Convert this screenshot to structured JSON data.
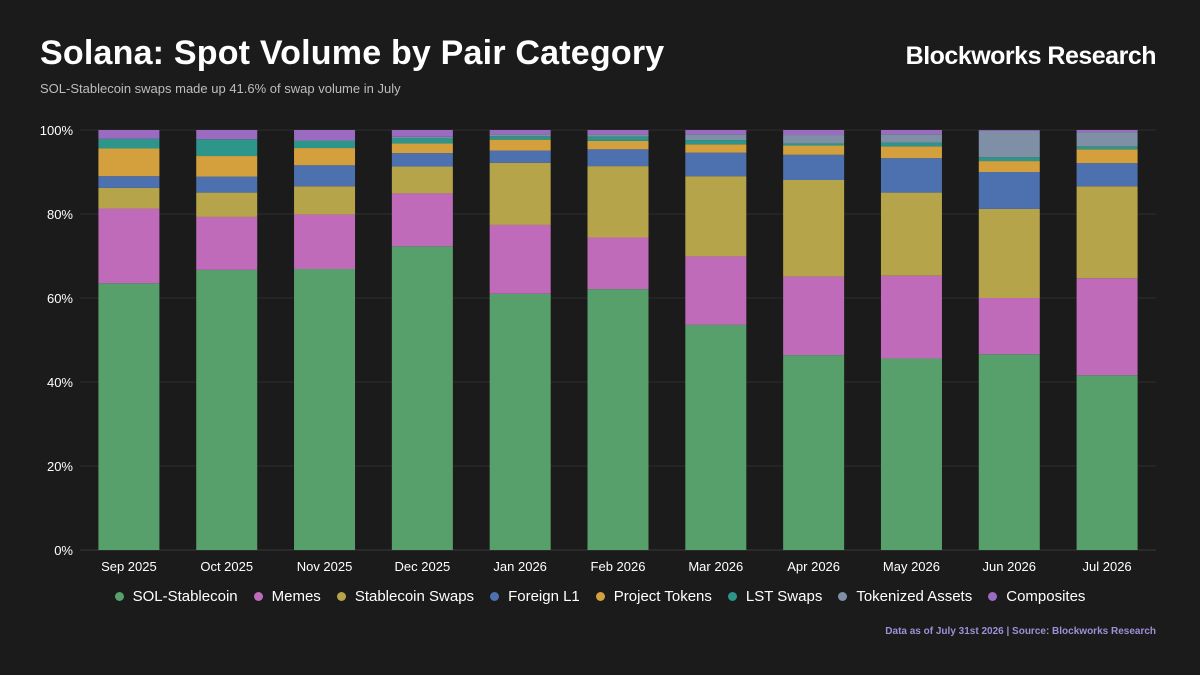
{
  "header": {
    "title": "Solana: Spot Volume by Pair Category",
    "subtitle": "SOL-Stablecoin swaps made up 41.6% of swap volume in July",
    "brand": "Blockworks Research"
  },
  "footer": {
    "source": "Data as of July 31st 2026 | Source: Blockworks Research"
  },
  "chart_data": {
    "type": "bar",
    "stacked": true,
    "percent": true,
    "ylim": [
      0,
      100
    ],
    "yticks": [
      "0%",
      "20%",
      "40%",
      "60%",
      "80%",
      "100%"
    ],
    "categories": [
      "Sep 2025",
      "Oct 2025",
      "Nov 2025",
      "Dec 2025",
      "Jan 2026",
      "Feb 2026",
      "Mar 2026",
      "Apr 2026",
      "May 2026",
      "Jun 2026",
      "Jul 2026"
    ],
    "legend_position": "bottom",
    "grid": true,
    "series": [
      {
        "name": "SOL-Stablecoin",
        "color": "#58a06b",
        "values": [
          63.5,
          66.7,
          66.9,
          72.3,
          61.0,
          62.1,
          53.6,
          46.4,
          45.6,
          46.6,
          41.6
        ]
      },
      {
        "name": "Memes",
        "color": "#bf6bb9",
        "values": [
          17.8,
          12.6,
          13.0,
          12.6,
          16.4,
          12.3,
          16.3,
          18.7,
          19.7,
          13.4,
          23.1
        ]
      },
      {
        "name": "Stablecoin Swaps",
        "color": "#b6a44a",
        "values": [
          4.9,
          5.8,
          6.7,
          6.4,
          14.8,
          17.0,
          19.1,
          23.0,
          19.8,
          21.2,
          21.9
        ]
      },
      {
        "name": "Foreign L1",
        "color": "#4d70ae",
        "values": [
          2.8,
          3.8,
          5.0,
          3.2,
          2.9,
          4.0,
          5.6,
          6.0,
          8.2,
          8.8,
          5.5
        ]
      },
      {
        "name": "Project Tokens",
        "color": "#d4a03d",
        "values": [
          6.6,
          4.9,
          4.1,
          2.3,
          2.6,
          2.0,
          2.0,
          2.2,
          2.8,
          2.6,
          3.3
        ]
      },
      {
        "name": "LST Swaps",
        "color": "#2e958a",
        "values": [
          2.3,
          4.0,
          1.7,
          1.3,
          0.8,
          1.0,
          1.0,
          0.5,
          0.9,
          0.9,
          0.7
        ]
      },
      {
        "name": "Tokenized Assets",
        "color": "#7f8fa6",
        "values": [
          0.0,
          0.0,
          0.2,
          0.3,
          0.5,
          0.6,
          1.4,
          2.0,
          2.0,
          6.3,
          3.4
        ]
      },
      {
        "name": "Composites",
        "color": "#9a6bc1",
        "values": [
          2.1,
          2.2,
          2.4,
          1.6,
          1.0,
          1.0,
          1.0,
          1.2,
          1.0,
          0.2,
          0.5
        ]
      }
    ]
  }
}
